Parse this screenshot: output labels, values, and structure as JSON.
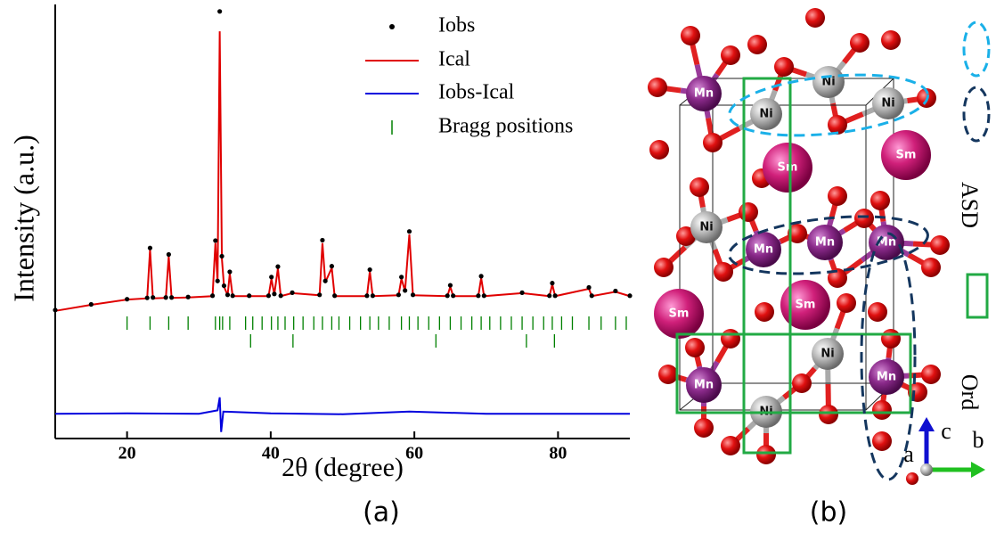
{
  "chart_data": {
    "type": "line",
    "xlabel": "2θ (degree)",
    "ylabel": "Intensity (a.u.)",
    "xlim": [
      10,
      90
    ],
    "xticks": [
      20,
      40,
      60,
      80
    ],
    "ylim": [
      0,
      100
    ],
    "legend": "upper right",
    "series": [
      {
        "name": "Iobs",
        "color": "#000000",
        "style": "dot",
        "x": [
          10,
          15,
          20,
          22.8,
          23.2,
          23.6,
          25.4,
          25.8,
          26.2,
          28.5,
          31.9,
          32.3,
          32.6,
          32.9,
          33.2,
          33.5,
          34.0,
          34.3,
          34.7,
          37,
          39.7,
          40.1,
          40.5,
          41.0,
          41.4,
          43,
          46.8,
          47.2,
          47.6,
          48.5,
          48.9,
          53.4,
          53.8,
          54.2,
          57.8,
          58.2,
          58.7,
          59.3,
          59.8,
          64.6,
          65,
          65.4,
          68.9,
          69.3,
          69.7,
          75,
          78.8,
          79.2,
          79.6,
          84.3,
          84.7,
          88,
          90
        ],
        "values": [
          29.6,
          30.9,
          32.1,
          32.4,
          43.9,
          32.5,
          32.5,
          42.4,
          32.5,
          32.6,
          32.9,
          45.6,
          36.3,
          98.4,
          42.0,
          35.2,
          33.1,
          38.4,
          32.9,
          32.9,
          32.9,
          37.2,
          33.3,
          39.6,
          32.9,
          33.6,
          33.1,
          45.7,
          36.3,
          39.7,
          32.9,
          32.9,
          38.9,
          32.9,
          33.1,
          37.2,
          34.1,
          47.7,
          33.1,
          32.9,
          35.3,
          32.9,
          32.9,
          37.4,
          32.9,
          33.6,
          32.9,
          35.8,
          32.9,
          34.8,
          32.9,
          34.0,
          32.9
        ]
      },
      {
        "name": "Ical",
        "color": "#e00000",
        "style": "line",
        "x": [
          10,
          15,
          20,
          22.8,
          23.2,
          23.6,
          25.4,
          25.8,
          26.2,
          28.5,
          31.9,
          32.3,
          32.6,
          32.9,
          33.2,
          33.5,
          34.0,
          34.3,
          34.7,
          37,
          39.7,
          40.1,
          40.5,
          41.0,
          41.4,
          43,
          46.8,
          47.2,
          47.6,
          48.5,
          48.9,
          53.4,
          53.8,
          54.2,
          57.8,
          58.2,
          58.7,
          59.3,
          59.8,
          64.6,
          65,
          65.4,
          68.9,
          69.3,
          69.7,
          75,
          78.8,
          79.2,
          79.6,
          84.3,
          84.7,
          88,
          90
        ],
        "values": [
          29.4,
          30.8,
          32.0,
          32.3,
          43.5,
          32.3,
          32.4,
          42.0,
          32.4,
          32.5,
          32.8,
          45.0,
          36.0,
          93.8,
          41.5,
          35.0,
          33.0,
          38.0,
          32.8,
          32.8,
          32.8,
          36.8,
          33.2,
          39.2,
          32.8,
          33.5,
          33.0,
          45.0,
          36.0,
          39.3,
          32.8,
          32.8,
          38.5,
          32.8,
          33.0,
          36.8,
          34.0,
          47.0,
          33.0,
          32.8,
          35.0,
          32.8,
          32.8,
          37.0,
          32.8,
          33.5,
          32.8,
          35.5,
          32.8,
          34.5,
          32.8,
          33.8,
          32.8
        ]
      },
      {
        "name": "Iobs-Ical",
        "color": "#0000dd",
        "style": "line",
        "x": [
          10,
          20,
          30,
          32.6,
          32.9,
          33.1,
          33.4,
          40,
          50,
          59.3,
          70,
          90
        ],
        "values": [
          5.7,
          5.8,
          5.7,
          6.5,
          9.5,
          1.5,
          6.2,
          5.8,
          5.6,
          6.2,
          5.7,
          5.7
        ]
      }
    ],
    "bragg_positions": {
      "name": "Bragg positions",
      "color": "#008000",
      "rows": [
        [
          20,
          23.2,
          25.8,
          28.5,
          32.3,
          32.9,
          33.3,
          34.3,
          36.5,
          37.5,
          38.8,
          40.1,
          41.0,
          42,
          43.2,
          44.5,
          46,
          47.2,
          48.5,
          49.5,
          51,
          52.5,
          53.8,
          55,
          56.5,
          58.2,
          59.3,
          60.5,
          62,
          63.5,
          65,
          66.5,
          68,
          69.3,
          70.5,
          72,
          73.5,
          75,
          76.5,
          78,
          79.2,
          80.5,
          82,
          84.3,
          86,
          88,
          89.5
        ],
        [
          37.2,
          43.1,
          63,
          75.6,
          79.5
        ]
      ]
    }
  },
  "panel_labels": [
    "(a)",
    "(b)"
  ],
  "structure": {
    "atoms": [
      "Mn",
      "Ni",
      "Ni",
      "Ni",
      "Sm",
      "Sm",
      "Ni",
      "Mn",
      "Mn",
      "Mn",
      "Sm",
      "Sm",
      "Mn",
      "Ni",
      "Ni",
      "Mn"
    ],
    "legend": [
      "ASD",
      "Ord"
    ],
    "axes": [
      "a",
      "b",
      "c"
    ]
  }
}
